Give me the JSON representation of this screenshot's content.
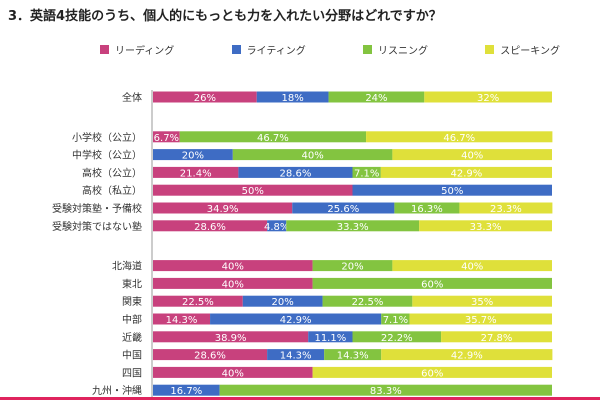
{
  "title": "3．英語4技能のうち、個人的にもっとも力を入れたい分野はどれですか？",
  "chart_data": {
    "type": "bar",
    "orientation": "horizontal",
    "stacked": true,
    "percent_stacked": true,
    "legend_position": "top",
    "grid": false,
    "series": [
      {
        "name": "リーディング",
        "color": "#c8417d"
      },
      {
        "name": "ライティング",
        "color": "#3e6cc4"
      },
      {
        "name": "リスニング",
        "color": "#83c440"
      },
      {
        "name": "スピーキング",
        "color": "#dfe03a"
      }
    ],
    "groups": [
      {
        "rows": [
          {
            "category": "全体",
            "values": [
              26,
              18,
              24,
              32
            ],
            "labels": [
              "26%",
              "18%",
              "24%",
              "32%"
            ]
          }
        ]
      },
      {
        "rows": [
          {
            "category": "小学校（公立）",
            "values": [
              6.7,
              0,
              46.7,
              46.7
            ],
            "labels": [
              "6.7%",
              "",
              "46.7%",
              "46.7%"
            ]
          },
          {
            "category": "中学校（公立）",
            "values": [
              0,
              20,
              40,
              40
            ],
            "labels": [
              "",
              "20%",
              "40%",
              "40%"
            ]
          },
          {
            "category": "高校（公立）",
            "values": [
              21.4,
              28.6,
              7.1,
              42.9
            ],
            "labels": [
              "21.4%",
              "28.6%",
              "7.1%",
              "42.9%"
            ]
          },
          {
            "category": "高校（私立）",
            "values": [
              50,
              50,
              0,
              0
            ],
            "labels": [
              "50%",
              "50%",
              "",
              ""
            ]
          },
          {
            "category": "受験対策塾・予備校",
            "values": [
              34.9,
              25.6,
              16.3,
              23.3
            ],
            "labels": [
              "34.9%",
              "25.6%",
              "16.3%",
              "23.3%"
            ]
          },
          {
            "category": "受験対策ではない塾",
            "values": [
              28.6,
              4.8,
              33.3,
              33.3
            ],
            "labels": [
              "28.6%",
              "4.8%",
              "33.3%",
              "33.3%"
            ]
          }
        ]
      },
      {
        "rows": [
          {
            "category": "北海道",
            "values": [
              40,
              0,
              20,
              40
            ],
            "labels": [
              "40%",
              "",
              "20%",
              "40%"
            ]
          },
          {
            "category": "東北",
            "values": [
              40,
              0,
              60,
              0
            ],
            "labels": [
              "40%",
              "",
              "60%",
              ""
            ]
          },
          {
            "category": "関東",
            "values": [
              22.5,
              20,
              22.5,
              35
            ],
            "labels": [
              "22.5%",
              "20%",
              "22.5%",
              "35%"
            ]
          },
          {
            "category": "中部",
            "values": [
              14.3,
              42.9,
              7.1,
              35.7
            ],
            "labels": [
              "14.3%",
              "42.9%",
              "7.1%",
              "35.7%"
            ]
          },
          {
            "category": "近畿",
            "values": [
              38.9,
              11.1,
              22.2,
              27.8
            ],
            "labels": [
              "38.9%",
              "11.1%",
              "22.2%",
              "27.8%"
            ]
          },
          {
            "category": "中国",
            "values": [
              28.6,
              14.3,
              14.3,
              42.9
            ],
            "labels": [
              "28.6%",
              "14.3%",
              "14.3%",
              "42.9%"
            ]
          },
          {
            "category": "四国",
            "values": [
              40,
              0,
              0,
              60
            ],
            "labels": [
              "40%",
              "",
              "",
              "60%"
            ]
          },
          {
            "category": "九州・沖縄",
            "values": [
              0,
              16.7,
              83.3,
              0
            ],
            "labels": [
              "",
              "16.7%",
              "83.3%",
              ""
            ]
          }
        ]
      }
    ]
  }
}
